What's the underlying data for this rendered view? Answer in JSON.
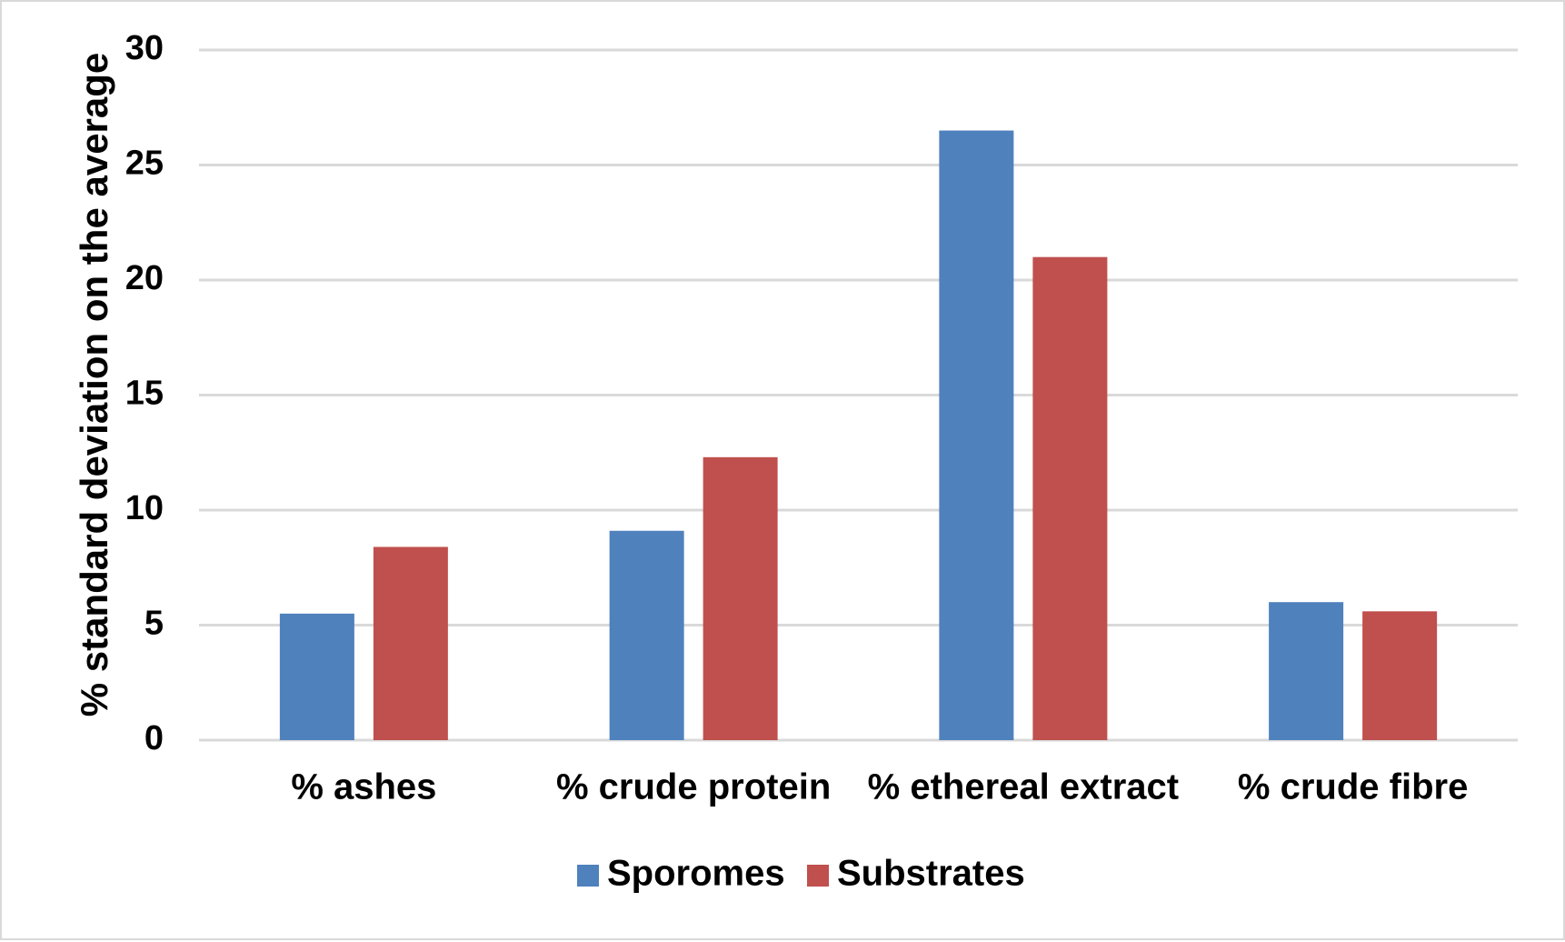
{
  "chart_data": {
    "type": "bar",
    "title": "",
    "xlabel": "",
    "ylabel": "% standard deviation on the average",
    "ylim": [
      0,
      30
    ],
    "yticks": [
      0,
      5,
      10,
      15,
      20,
      25,
      30
    ],
    "grid": true,
    "legend_position": "bottom",
    "categories": [
      "% ashes",
      "% crude protein",
      "% ethereal extract",
      "% crude fibre"
    ],
    "series": [
      {
        "name": "Sporomes",
        "color": "#4f81bd",
        "values": [
          5.5,
          9.1,
          26.5,
          6.0
        ]
      },
      {
        "name": "Substrates",
        "color": "#c0504d",
        "values": [
          8.4,
          12.3,
          21.0,
          5.6
        ]
      }
    ]
  }
}
